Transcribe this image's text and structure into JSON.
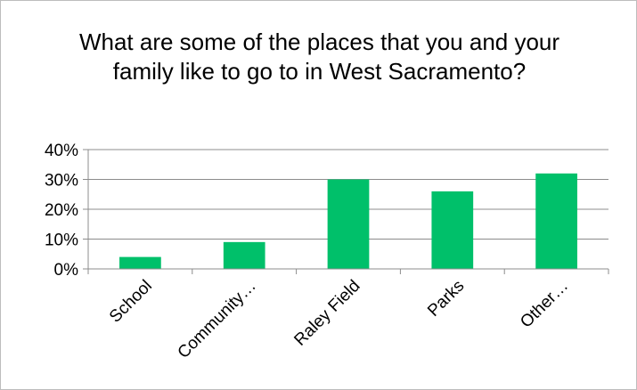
{
  "chart_data": {
    "type": "bar",
    "title": "What are some of the places that you and your family like to go to in West Sacramento?",
    "categories": [
      "School",
      "Community…",
      "Raley Field",
      "Parks",
      "Other…"
    ],
    "values": [
      0.04,
      0.09,
      0.3,
      0.26,
      0.32
    ],
    "ylim": [
      0,
      0.4
    ],
    "yticks": [
      0,
      0.1,
      0.2,
      0.3,
      0.4
    ],
    "ytick_labels": [
      "0%",
      "10%",
      "20%",
      "30%",
      "40%"
    ],
    "xlabel": "",
    "ylabel": "",
    "grid": true,
    "legend": "none",
    "bar_color": "#00C06A"
  }
}
